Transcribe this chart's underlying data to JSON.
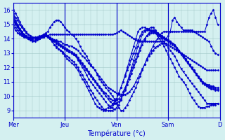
{
  "title": "",
  "xlabel": "Température (°c)",
  "ylabel": "",
  "bg_color": "#d4f0f0",
  "line_color": "#0000cc",
  "grid_color": "#a0c8c8",
  "yticks": [
    9,
    10,
    11,
    12,
    13,
    14,
    15,
    16
  ],
  "ylim": [
    8.5,
    16.5
  ],
  "day_labels": [
    "Mer",
    "Jeu",
    "Ven",
    "Sam",
    "D"
  ],
  "day_positions": [
    0,
    24,
    48,
    72,
    96
  ],
  "total_hours": 96,
  "series": [
    [
      15.8,
      15.5,
      15.3,
      15.0,
      14.8,
      14.6,
      14.4,
      14.3,
      14.2,
      14.1,
      14.1,
      14.0,
      14.0,
      14.1,
      14.1,
      14.2,
      14.2,
      14.3,
      14.3,
      14.3,
      14.3,
      14.3,
      14.3,
      14.3,
      14.3,
      14.3,
      14.3,
      14.3,
      14.3,
      14.3,
      14.3,
      14.3,
      14.3,
      14.3,
      14.3,
      14.3,
      14.3,
      14.3,
      14.3,
      14.3,
      14.3,
      14.3,
      14.3,
      14.3,
      14.3,
      14.3,
      14.3,
      14.35,
      14.4,
      14.5,
      14.6,
      14.5,
      14.4,
      14.3,
      14.2,
      14.1,
      14.0,
      13.9,
      13.9,
      13.8,
      13.8,
      13.8,
      13.8,
      13.8,
      13.8,
      13.8,
      13.8,
      13.8,
      13.8,
      13.8,
      13.8,
      14.0,
      14.2,
      14.5,
      15.3,
      15.5,
      15.2,
      15.0,
      14.8,
      14.6,
      14.6,
      14.6,
      14.6,
      14.6,
      14.5,
      14.4,
      14.3,
      14.2,
      14.1,
      14.0,
      13.9,
      13.8,
      13.5,
      13.2,
      13.0,
      12.9
    ],
    [
      15.5,
      15.2,
      14.9,
      14.6,
      14.4,
      14.2,
      14.1,
      14.0,
      13.9,
      13.9,
      13.9,
      14.0,
      14.0,
      14.1,
      14.1,
      14.2,
      14.2,
      14.0,
      13.9,
      13.8,
      13.7,
      13.6,
      13.5,
      13.4,
      13.3,
      13.2,
      13.1,
      13.0,
      12.9,
      12.8,
      12.5,
      12.3,
      12.0,
      11.8,
      11.5,
      11.2,
      11.0,
      10.8,
      10.6,
      10.4,
      10.2,
      10.0,
      9.8,
      9.6,
      9.4,
      9.2,
      9.2,
      9.5,
      9.8,
      10.2,
      10.6,
      11.0,
      11.4,
      11.8,
      12.2,
      12.6,
      13.0,
      13.4,
      13.8,
      14.2,
      14.5,
      14.6,
      14.7,
      14.7,
      14.8,
      14.8,
      14.6,
      14.4,
      14.2,
      14.0,
      13.8,
      13.6,
      13.4,
      13.2,
      13.0,
      12.8,
      12.5,
      12.2,
      11.9,
      11.7,
      11.5,
      11.3,
      11.1,
      10.9,
      10.7,
      10.5,
      10.3,
      10.1,
      9.9,
      9.7,
      9.5,
      9.5,
      9.5,
      9.5,
      9.5,
      9.5
    ],
    [
      15.6,
      15.3,
      15.0,
      14.7,
      14.5,
      14.3,
      14.1,
      14.0,
      13.9,
      13.8,
      13.8,
      13.9,
      14.0,
      14.1,
      14.2,
      14.3,
      14.2,
      14.0,
      13.8,
      13.6,
      13.4,
      13.3,
      13.2,
      13.0,
      12.8,
      12.6,
      12.5,
      12.3,
      12.2,
      12.0,
      11.8,
      11.5,
      11.2,
      11.0,
      10.7,
      10.4,
      10.1,
      9.8,
      9.5,
      9.3,
      9.2,
      9.1,
      9.0,
      9.1,
      9.2,
      9.3,
      9.4,
      9.6,
      9.8,
      10.2,
      10.6,
      11.0,
      11.5,
      12.0,
      12.5,
      13.0,
      13.5,
      14.0,
      14.5,
      14.7,
      14.8,
      14.8,
      14.7,
      14.6,
      14.5,
      14.5,
      14.4,
      14.2,
      14.0,
      13.8,
      13.5,
      13.2,
      12.9,
      12.6,
      12.3,
      12.0,
      11.7,
      11.4,
      11.2,
      11.0,
      10.8,
      10.5,
      10.2,
      9.9,
      9.7,
      9.5,
      9.3,
      9.2,
      9.2,
      9.2,
      9.3,
      9.3,
      9.4,
      9.4,
      9.4,
      9.5
    ],
    [
      16.0,
      15.8,
      15.5,
      15.2,
      14.9,
      14.7,
      14.5,
      14.3,
      14.2,
      14.1,
      14.1,
      14.1,
      14.1,
      14.2,
      14.3,
      14.4,
      14.5,
      14.8,
      15.0,
      15.2,
      15.3,
      15.3,
      15.2,
      15.0,
      14.8,
      14.6,
      14.5,
      14.3,
      14.2,
      14.0,
      13.8,
      13.5,
      13.2,
      13.0,
      12.8,
      12.5,
      12.2,
      12.0,
      11.8,
      11.5,
      11.2,
      11.0,
      10.8,
      10.6,
      10.4,
      10.2,
      10.0,
      9.8,
      9.5,
      9.2,
      9.0,
      9.0,
      9.2,
      9.4,
      9.7,
      10.0,
      10.3,
      10.6,
      11.0,
      11.4,
      11.8,
      12.2,
      12.6,
      12.9,
      13.2,
      13.5,
      13.8,
      14.0,
      14.2,
      14.4,
      14.5,
      14.5,
      14.5,
      14.5,
      14.5,
      14.5,
      14.5,
      14.5,
      14.5,
      14.5,
      14.5,
      14.5,
      14.5,
      14.5,
      14.5,
      14.5,
      14.5,
      14.5,
      14.5,
      14.5,
      15.0,
      15.5,
      15.8,
      16.0,
      15.5,
      15.0
    ],
    [
      14.8,
      14.6,
      14.4,
      14.3,
      14.2,
      14.1,
      14.1,
      14.1,
      14.0,
      14.0,
      14.0,
      14.1,
      14.2,
      14.2,
      14.3,
      14.3,
      14.2,
      14.1,
      14.0,
      13.9,
      13.9,
      13.8,
      13.8,
      13.7,
      13.6,
      13.6,
      13.5,
      13.5,
      13.4,
      13.3,
      13.2,
      13.0,
      12.8,
      12.7,
      12.5,
      12.3,
      12.1,
      12.0,
      11.8,
      11.6,
      11.4,
      11.2,
      11.0,
      10.8,
      10.6,
      10.5,
      10.4,
      10.3,
      10.2,
      10.1,
      10.1,
      10.1,
      10.1,
      10.2,
      10.3,
      10.5,
      10.7,
      11.0,
      11.3,
      11.6,
      11.9,
      12.2,
      12.5,
      12.8,
      13.0,
      13.2,
      13.4,
      13.5,
      13.6,
      13.7,
      13.7,
      13.7,
      13.6,
      13.5,
      13.4,
      13.3,
      13.2,
      13.1,
      13.0,
      12.9,
      12.8,
      12.7,
      12.6,
      12.5,
      12.4,
      12.3,
      12.2,
      12.1,
      12.0,
      11.9,
      11.8,
      11.8,
      11.8,
      11.8,
      11.8,
      11.8
    ],
    [
      15.2,
      15.0,
      14.8,
      14.6,
      14.4,
      14.3,
      14.2,
      14.1,
      14.1,
      14.0,
      14.0,
      14.1,
      14.1,
      14.2,
      14.2,
      14.2,
      14.1,
      14.0,
      13.9,
      13.9,
      13.8,
      13.7,
      13.6,
      13.5,
      13.4,
      13.3,
      13.2,
      13.1,
      13.0,
      12.9,
      12.7,
      12.5,
      12.3,
      12.1,
      11.9,
      11.7,
      11.5,
      11.3,
      11.1,
      10.9,
      10.7,
      10.5,
      10.3,
      10.2,
      10.0,
      9.8,
      9.7,
      9.7,
      9.7,
      9.8,
      10.0,
      10.3,
      10.6,
      11.0,
      11.4,
      11.8,
      12.2,
      12.6,
      13.0,
      13.4,
      13.8,
      14.0,
      14.2,
      14.3,
      14.4,
      14.4,
      14.4,
      14.3,
      14.2,
      14.1,
      14.0,
      13.9,
      13.8,
      13.7,
      13.6,
      13.5,
      13.3,
      13.1,
      12.9,
      12.7,
      12.5,
      12.3,
      12.1,
      11.9,
      11.7,
      11.5,
      11.3,
      11.1,
      10.9,
      10.8,
      10.7,
      10.6,
      10.5,
      10.5,
      10.4,
      10.4
    ],
    [
      15.0,
      14.8,
      14.6,
      14.4,
      14.3,
      14.2,
      14.1,
      14.0,
      14.0,
      14.0,
      14.0,
      14.0,
      14.1,
      14.1,
      14.2,
      14.2,
      14.1,
      14.0,
      13.9,
      13.8,
      13.7,
      13.6,
      13.5,
      13.4,
      13.3,
      13.2,
      13.1,
      13.0,
      12.9,
      12.8,
      12.6,
      12.4,
      12.2,
      12.0,
      11.8,
      11.6,
      11.4,
      11.2,
      11.0,
      10.8,
      10.6,
      10.4,
      10.2,
      10.0,
      9.8,
      9.6,
      9.5,
      9.5,
      9.5,
      9.6,
      9.8,
      10.1,
      10.4,
      10.8,
      11.2,
      11.6,
      12.0,
      12.4,
      12.8,
      13.2,
      13.6,
      13.9,
      14.2,
      14.4,
      14.5,
      14.5,
      14.5,
      14.4,
      14.3,
      14.2,
      14.1,
      14.0,
      13.9,
      13.8,
      13.7,
      13.6,
      13.4,
      13.2,
      13.0,
      12.8,
      12.6,
      12.4,
      12.2,
      12.0,
      11.8,
      11.6,
      11.4,
      11.2,
      11.0,
      10.9,
      10.8,
      10.8,
      10.7,
      10.7,
      10.6,
      10.6
    ],
    [
      15.3,
      15.1,
      14.9,
      14.7,
      14.5,
      14.3,
      14.2,
      14.0,
      14.0,
      13.9,
      13.9,
      14.0,
      14.0,
      14.1,
      14.2,
      14.3,
      14.2,
      14.0,
      13.8,
      13.6,
      13.5,
      13.3,
      13.2,
      13.1,
      12.9,
      12.8,
      12.7,
      12.5,
      12.4,
      12.2,
      12.0,
      11.7,
      11.5,
      11.2,
      11.0,
      10.7,
      10.4,
      10.2,
      9.9,
      9.7,
      9.5,
      9.3,
      9.1,
      9.0,
      9.0,
      9.0,
      9.0,
      9.1,
      9.2,
      9.4,
      9.7,
      10.1,
      10.5,
      11.0,
      11.5,
      12.0,
      12.5,
      13.0,
      13.5,
      13.9,
      14.3,
      14.5,
      14.6,
      14.6,
      14.6,
      14.6,
      14.5,
      14.4,
      14.3,
      14.2,
      14.1,
      14.0,
      13.9,
      13.8,
      13.7,
      13.6,
      13.4,
      13.2,
      13.0,
      12.8,
      12.6,
      12.4,
      12.2,
      12.0,
      11.8,
      11.6,
      11.4,
      11.2,
      11.0,
      10.9,
      10.8,
      10.7,
      10.6,
      10.6,
      10.5,
      10.5
    ]
  ]
}
